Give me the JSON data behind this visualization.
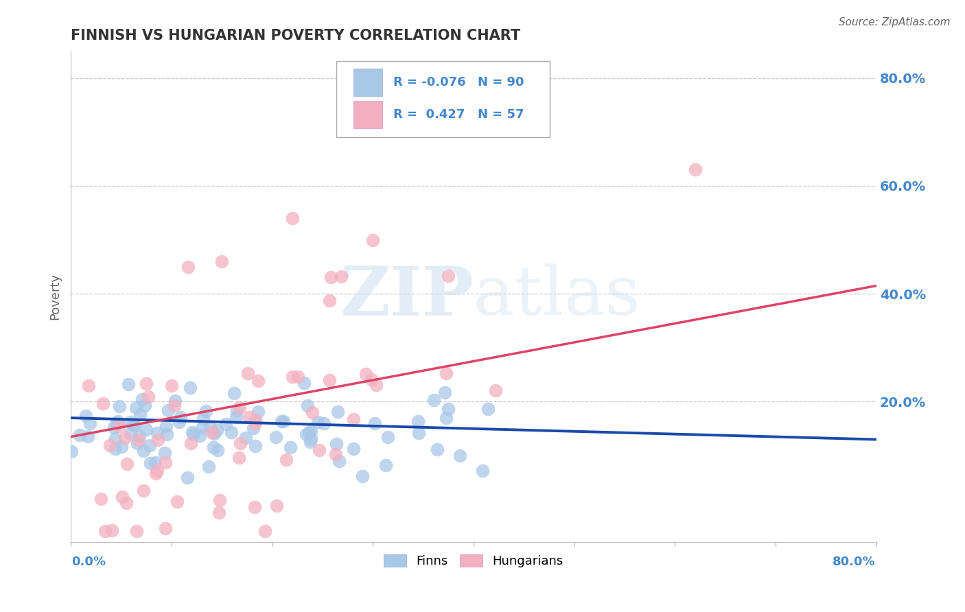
{
  "title": "FINNISH VS HUNGARIAN POVERTY CORRELATION CHART",
  "source": "Source: ZipAtlas.com",
  "ylabel": "Poverty",
  "xmin": 0.0,
  "xmax": 0.8,
  "ymin": -0.06,
  "ymax": 0.85,
  "yticks": [
    0.0,
    0.2,
    0.4,
    0.6,
    0.8
  ],
  "ytick_labels": [
    "",
    "20.0%",
    "40.0%",
    "60.0%",
    "80.0%"
  ],
  "legend_r_finns": "-0.076",
  "legend_n_finns": "90",
  "legend_r_hung": "0.427",
  "legend_n_hung": "57",
  "finns_color": "#a8c8e8",
  "hung_color": "#f4b0c0",
  "finns_line_color": "#1a4aaa",
  "hung_line_color": "#dd4466",
  "finns_r": -0.076,
  "finns_n": 90,
  "hung_r": 0.427,
  "hung_n": 57,
  "background_color": "#ffffff",
  "grid_color": "#cccccc",
  "title_color": "#333333",
  "axis_label_color": "#4488cc",
  "legend_text_color": "#4488cc",
  "watermark": "ZIPatlas"
}
